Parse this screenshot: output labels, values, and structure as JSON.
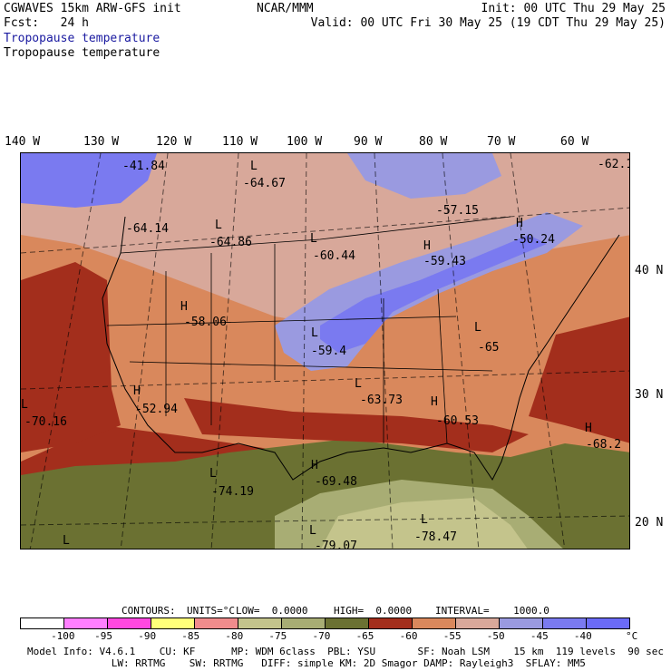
{
  "header": {
    "model": "CGWAVES 15km ARW-GFS init",
    "fcst": "Fcst:   24 h",
    "org": "NCAR/MMM",
    "init": "Init: 00 UTC Thu 29 May 25",
    "valid": "Valid: 00 UTC Fri 30 May 25 (19 CDT Thu 29 May 25)",
    "field_title": "Tropopause temperature",
    "field_subtitle": "Tropopause temperature"
  },
  "colors": {
    "field_title": "#1a1aa0",
    "map": {
      "lt_neg40": "#7a7af0",
      "band_45_50": "#9a9ae0",
      "band_50_55": "#d8a89a",
      "band_55_60": "#d9885c",
      "band_60_65": "#a32e1c",
      "band_65_70": "#6b7132",
      "band_70_75": "#a8ad74",
      "band_75_80": "#c4c48c"
    }
  },
  "longitude_labels": [
    "140 W",
    "130 W",
    "120 W",
    "110 W",
    "100 W",
    "90 W",
    "80 W",
    "70 W",
    "60 W"
  ],
  "latitude_labels": [
    "40 N",
    "30 N",
    "20 N"
  ],
  "map_markers": [
    {
      "type": "",
      "value": "-41.84"
    },
    {
      "type": "L",
      "value": "-64.67"
    },
    {
      "type": "",
      "value": "-62.1"
    },
    {
      "type": "",
      "value": "-57.15"
    },
    {
      "type": "L",
      "value": "-64.86"
    },
    {
      "type": "",
      "value": "-64.14"
    },
    {
      "type": "L",
      "value": "-60.44"
    },
    {
      "type": "H",
      "value": "-59.43"
    },
    {
      "type": "H",
      "value": "-50.24"
    },
    {
      "type": "H",
      "value": "-58.06"
    },
    {
      "type": "L",
      "value": "-59.4"
    },
    {
      "type": "L",
      "value": "-65"
    },
    {
      "type": "H",
      "value": "-52.94"
    },
    {
      "type": "L",
      "value": "-63.73"
    },
    {
      "type": "H",
      "value": "-60.53"
    },
    {
      "type": "L",
      "value": "-70.16"
    },
    {
      "type": "H",
      "value": "-68.2"
    },
    {
      "type": "L",
      "value": "-74.19"
    },
    {
      "type": "H",
      "value": "-69.48"
    },
    {
      "type": "L",
      "value": "-78.47"
    },
    {
      "type": "L",
      "value": "-79.07"
    },
    {
      "type": "L",
      "value": ""
    }
  ],
  "contour_info": {
    "contours": "CONTOURS:",
    "units": "UNITS=°C",
    "low": "LOW=  0.0000",
    "high": "HIGH=  0.0000",
    "interval": "INTERVAL=    1000.0"
  },
  "colorbar": {
    "bins": [
      "#ffffff",
      "#ff7fff",
      "#ff48e0",
      "#ffff7a",
      "#f08c8c",
      "#c4c48c",
      "#a8ad74",
      "#6b7132",
      "#a32e1c",
      "#d9885c",
      "#d8a89a",
      "#9a9ae0",
      "#7a7af0",
      "#6b6bf7"
    ],
    "ticks": [
      "-100",
      "-95",
      "-90",
      "-85",
      "-80",
      "-75",
      "-70",
      "-65",
      "-60",
      "-55",
      "-50",
      "-45",
      "-40"
    ],
    "unit": "°C"
  },
  "footer": {
    "line1": "Model Info: V4.6.1    CU: KF      MP: WDM 6class  PBL: YSU       SF: Noah LSM    15 km  119 levels  90 sec",
    "line2": "              LW: RRTMG    SW: RRTMG   DIFF: simple KM: 2D Smagor DAMP: Rayleigh3  SFLAY: MM5"
  }
}
